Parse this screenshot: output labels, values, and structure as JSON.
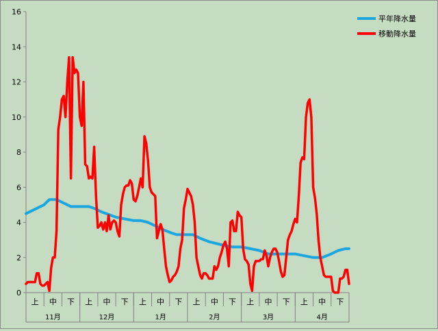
{
  "chart_data": {
    "type": "line",
    "ylim": [
      0,
      16
    ],
    "y_ticks": [
      "0",
      "2",
      "4",
      "6",
      "8",
      "10",
      "12",
      "14",
      "16"
    ],
    "grid": false,
    "legend_placement": "top-right",
    "x_range": [
      0,
      180
    ],
    "months": [
      "11月",
      "12月",
      "1月",
      "2月",
      "3月",
      "4月"
    ],
    "decades": [
      "上",
      "中",
      "下"
    ],
    "series": [
      {
        "name": "平年降水量",
        "color": "#1ca6df",
        "points": [
          [
            0,
            4.5
          ],
          [
            4,
            4.7
          ],
          [
            8,
            4.9
          ],
          [
            10,
            5.0
          ],
          [
            13,
            5.3
          ],
          [
            17,
            5.3
          ],
          [
            21,
            5.1
          ],
          [
            25,
            4.9
          ],
          [
            35,
            4.9
          ],
          [
            38,
            4.8
          ],
          [
            42,
            4.6
          ],
          [
            50,
            4.3
          ],
          [
            55,
            4.2
          ],
          [
            60,
            4.1
          ],
          [
            64,
            4.1
          ],
          [
            68,
            4.0
          ],
          [
            72,
            3.8
          ],
          [
            76,
            3.6
          ],
          [
            81,
            3.4
          ],
          [
            84,
            3.3
          ],
          [
            87,
            3.3
          ],
          [
            90,
            3.3
          ],
          [
            93,
            3.3
          ],
          [
            97,
            3.1
          ],
          [
            102,
            2.9
          ],
          [
            106,
            2.8
          ],
          [
            110,
            2.7
          ],
          [
            115,
            2.6
          ],
          [
            120,
            2.6
          ],
          [
            125,
            2.5
          ],
          [
            130,
            2.4
          ],
          [
            135,
            2.2
          ],
          [
            140,
            2.2
          ],
          [
            146,
            2.2
          ],
          [
            150,
            2.2
          ],
          [
            155,
            2.1
          ],
          [
            160,
            2.0
          ],
          [
            165,
            2.0
          ],
          [
            170,
            2.2
          ],
          [
            174,
            2.4
          ],
          [
            178,
            2.5
          ],
          [
            180,
            2.5
          ]
        ]
      },
      {
        "name": "移動降水量",
        "color": "#ff0000",
        "points": [
          [
            0,
            0.5
          ],
          [
            1,
            0.6
          ],
          [
            3,
            0.6
          ],
          [
            5,
            0.6
          ],
          [
            6,
            1.1
          ],
          [
            7,
            1.1
          ],
          [
            8,
            0.5
          ],
          [
            9,
            0.4
          ],
          [
            10,
            0.4
          ],
          [
            11,
            0.5
          ],
          [
            12,
            0.6
          ],
          [
            13,
            0.1
          ],
          [
            14,
            1.4
          ],
          [
            15,
            2.0
          ],
          [
            16,
            2.0
          ],
          [
            17,
            3.5
          ],
          [
            18,
            9.3
          ],
          [
            19,
            10.0
          ],
          [
            20,
            11.0
          ],
          [
            21,
            11.2
          ],
          [
            22,
            10.0
          ],
          [
            23,
            12.0
          ],
          [
            24,
            13.4
          ],
          [
            25,
            6.5
          ],
          [
            26,
            13.4
          ],
          [
            27,
            12.5
          ],
          [
            28,
            12.7
          ],
          [
            29,
            12.5
          ],
          [
            30,
            10.0
          ],
          [
            31,
            9.5
          ],
          [
            32,
            12.0
          ],
          [
            33,
            7.3
          ],
          [
            34,
            7.2
          ],
          [
            35,
            6.5
          ],
          [
            36,
            6.6
          ],
          [
            37,
            6.5
          ],
          [
            38,
            8.3
          ],
          [
            39,
            5.5
          ],
          [
            40,
            3.7
          ],
          [
            41,
            3.8
          ],
          [
            42,
            4.0
          ],
          [
            43,
            3.6
          ],
          [
            44,
            4.0
          ],
          [
            45,
            3.5
          ],
          [
            46,
            4.4
          ],
          [
            47,
            3.6
          ],
          [
            48,
            4.0
          ],
          [
            49,
            4.1
          ],
          [
            50,
            4.0
          ],
          [
            51,
            3.5
          ],
          [
            52,
            3.2
          ],
          [
            53,
            5.0
          ],
          [
            54,
            5.6
          ],
          [
            55,
            6.0
          ],
          [
            56,
            6.1
          ],
          [
            57,
            6.1
          ],
          [
            58,
            6.4
          ],
          [
            59,
            6.2
          ],
          [
            60,
            5.3
          ],
          [
            61,
            5.2
          ],
          [
            62,
            5.5
          ],
          [
            63,
            6.0
          ],
          [
            64,
            6.5
          ],
          [
            65,
            6.0
          ],
          [
            66,
            8.9
          ],
          [
            67,
            8.5
          ],
          [
            68,
            7.5
          ],
          [
            69,
            6.0
          ],
          [
            70,
            5.7
          ],
          [
            71,
            5.6
          ],
          [
            72,
            5.5
          ],
          [
            73,
            3.1
          ],
          [
            74,
            3.5
          ],
          [
            75,
            3.9
          ],
          [
            76,
            3.6
          ],
          [
            77,
            2.5
          ],
          [
            78,
            1.5
          ],
          [
            79,
            1.0
          ],
          [
            80,
            0.6
          ],
          [
            81,
            0.7
          ],
          [
            82,
            0.9
          ],
          [
            83,
            1.0
          ],
          [
            84,
            1.2
          ],
          [
            85,
            1.5
          ],
          [
            86,
            2.5
          ],
          [
            87,
            3.0
          ],
          [
            88,
            4.8
          ],
          [
            89,
            5.3
          ],
          [
            90,
            5.9
          ],
          [
            91,
            5.7
          ],
          [
            92,
            5.5
          ],
          [
            93,
            5.0
          ],
          [
            94,
            4.0
          ],
          [
            95,
            2.0
          ],
          [
            96,
            1.5
          ],
          [
            97,
            1.0
          ],
          [
            98,
            0.8
          ],
          [
            99,
            1.1
          ],
          [
            100,
            1.1
          ],
          [
            101,
            1.0
          ],
          [
            102,
            0.8
          ],
          [
            103,
            0.8
          ],
          [
            104,
            0.8
          ],
          [
            105,
            1.5
          ],
          [
            106,
            1.3
          ],
          [
            107,
            1.5
          ],
          [
            108,
            2.0
          ],
          [
            109,
            2.3
          ],
          [
            110,
            2.7
          ],
          [
            111,
            2.9
          ],
          [
            112,
            2.5
          ],
          [
            113,
            1.5
          ],
          [
            114,
            4.0
          ],
          [
            115,
            4.1
          ],
          [
            116,
            3.5
          ],
          [
            117,
            3.5
          ],
          [
            118,
            4.6
          ],
          [
            119,
            4.4
          ],
          [
            120,
            4.3
          ],
          [
            121,
            2.5
          ],
          [
            122,
            1.9
          ],
          [
            123,
            1.8
          ],
          [
            124,
            1.6
          ],
          [
            125,
            0.5
          ],
          [
            126,
            0.1
          ],
          [
            127,
            1.5
          ],
          [
            128,
            1.8
          ],
          [
            129,
            1.8
          ],
          [
            130,
            1.8
          ],
          [
            131,
            1.9
          ],
          [
            132,
            1.9
          ],
          [
            133,
            2.4
          ],
          [
            134,
            2.1
          ],
          [
            135,
            1.5
          ],
          [
            136,
            2.0
          ],
          [
            137,
            2.3
          ],
          [
            138,
            2.5
          ],
          [
            139,
            2.5
          ],
          [
            140,
            2.3
          ],
          [
            141,
            1.8
          ],
          [
            142,
            1.2
          ],
          [
            143,
            0.9
          ],
          [
            144,
            1.0
          ],
          [
            145,
            2.0
          ],
          [
            146,
            3.0
          ],
          [
            147,
            3.3
          ],
          [
            148,
            3.5
          ],
          [
            149,
            3.9
          ],
          [
            150,
            4.2
          ],
          [
            151,
            4.0
          ],
          [
            152,
            5.5
          ],
          [
            153,
            7.4
          ],
          [
            154,
            7.7
          ],
          [
            155,
            7.6
          ],
          [
            156,
            10.0
          ],
          [
            157,
            10.8
          ],
          [
            158,
            11.0
          ],
          [
            159,
            10.0
          ],
          [
            160,
            6.0
          ],
          [
            161,
            5.4
          ],
          [
            162,
            4.5
          ],
          [
            163,
            3.0
          ],
          [
            164,
            2.0
          ],
          [
            165,
            1.5
          ],
          [
            166,
            1.0
          ],
          [
            167,
            0.9
          ],
          [
            168,
            0.9
          ],
          [
            169,
            0.9
          ],
          [
            170,
            0.9
          ],
          [
            171,
            0.1
          ],
          [
            172,
            0.0
          ],
          [
            173,
            0.0
          ],
          [
            174,
            0.0
          ],
          [
            175,
            0.8
          ],
          [
            176,
            0.8
          ],
          [
            177,
            0.9
          ],
          [
            178,
            1.3
          ],
          [
            179,
            1.3
          ],
          [
            180,
            0.5
          ]
        ]
      }
    ]
  }
}
